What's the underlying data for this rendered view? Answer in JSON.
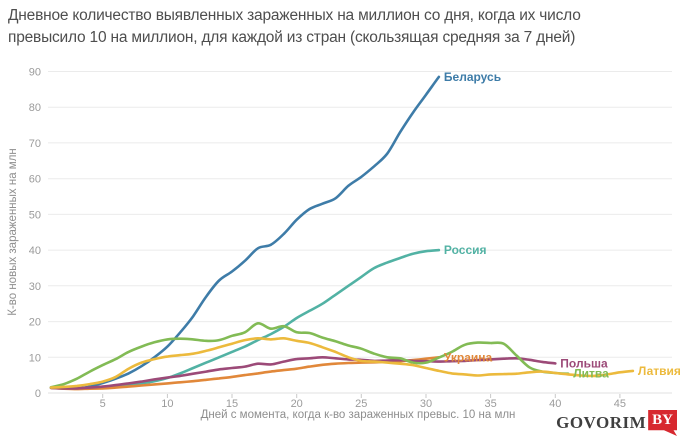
{
  "title": {
    "line1": "Дневное количество выявленных зараженных на миллион со дня, когда их число",
    "line2": "превысило 10 на миллион, для каждой из стран (скользящая средняя за 7 дней)"
  },
  "logo": {
    "text": "GOVORIM",
    "badge": "BY",
    "badge_color": "#d7282f"
  },
  "chart_data": {
    "type": "line",
    "title": "Дневное количество выявленных зараженных на миллион со дня, когда их число превысило 10 на миллион, для каждой из стран (скользящая средняя за 7 дней)",
    "xlabel": "Дней с момента, когда к-во зараженных превыс. 10 на млн",
    "ylabel": "К-во новых зараженных на млн",
    "x_ticks": [
      5,
      10,
      15,
      20,
      25,
      30,
      35,
      40,
      45
    ],
    "y_ticks": [
      0,
      10,
      20,
      30,
      40,
      50,
      60,
      70,
      80,
      90
    ],
    "x_range": [
      1,
      49
    ],
    "ylim": [
      0,
      90
    ],
    "grid": "horizontal",
    "legend_position": "line-end-labels",
    "colors": {
      "grid": "#ebebeb",
      "axis_line": "#e2e2e2",
      "tick": "#c9c9c9",
      "tick_label": "#9b9b9b",
      "axis_title": "#8e8e8e"
    },
    "x_start_day": 1,
    "series": [
      {
        "id": "belarus",
        "name": "Беларусь",
        "color": "#3e7ca8",
        "values": [
          1.5,
          1.4,
          1.3,
          1.8,
          2.8,
          4.0,
          5.5,
          7.5,
          10.0,
          13.0,
          17.0,
          21.5,
          27.0,
          31.5,
          34.0,
          37.0,
          40.5,
          41.5,
          44.5,
          48.5,
          51.5,
          53.0,
          54.5,
          58.0,
          60.5,
          63.5,
          67.0,
          73.0,
          78.5,
          83.5,
          88.5
        ]
      },
      {
        "id": "russia",
        "name": "Россия",
        "color": "#52b2a4",
        "values": [
          1.5,
          1.3,
          1.2,
          1.3,
          1.5,
          1.8,
          2.2,
          2.7,
          3.3,
          4.2,
          5.5,
          7.0,
          8.5,
          10.0,
          11.5,
          13.0,
          14.8,
          16.5,
          18.5,
          21.0,
          23.0,
          25.0,
          27.5,
          30.0,
          32.5,
          35.0,
          36.5,
          37.8,
          39.0,
          39.7,
          40.0
        ]
      },
      {
        "id": "ukraine",
        "name": "Украина",
        "color": "#e1883a",
        "values": [
          1.4,
          1.2,
          1.1,
          1.2,
          1.3,
          1.5,
          1.8,
          2.1,
          2.4,
          2.7,
          3.0,
          3.3,
          3.7,
          4.1,
          4.5,
          5.0,
          5.5,
          6.0,
          6.4,
          6.8,
          7.4,
          7.9,
          8.2,
          8.4,
          8.5,
          8.6,
          8.7,
          8.9,
          9.2,
          9.6,
          10.0
        ]
      },
      {
        "id": "poland",
        "name": "Польша",
        "color": "#9c4a78",
        "values": [
          1.4,
          1.3,
          1.3,
          1.5,
          1.8,
          2.2,
          2.7,
          3.2,
          3.8,
          4.3,
          4.8,
          5.4,
          6.0,
          6.6,
          7.0,
          7.4,
          8.2,
          8.0,
          8.8,
          9.5,
          9.7,
          10.0,
          9.7,
          9.4,
          9.3,
          9.0,
          9.1,
          9.2,
          9.0,
          8.9,
          8.8,
          8.9,
          9.0,
          9.2,
          9.4,
          9.6,
          9.7,
          9.3,
          8.7,
          8.3
        ]
      },
      {
        "id": "lithuania",
        "name": "Литва",
        "color": "#82bb55",
        "values": [
          1.6,
          2.5,
          4.0,
          6.0,
          7.8,
          9.5,
          11.5,
          13.0,
          14.2,
          15.0,
          15.2,
          15.0,
          14.6,
          14.8,
          16.0,
          17.0,
          19.5,
          18.0,
          18.7,
          17.0,
          16.8,
          15.5,
          14.5,
          13.3,
          12.4,
          11.0,
          10.0,
          9.7,
          8.5,
          8.5,
          9.9,
          11.5,
          13.5,
          14.1,
          14.0,
          13.8,
          10.5,
          7.2,
          6.0,
          5.6,
          5.4
        ]
      },
      {
        "id": "latvia",
        "name": "Латвия",
        "color": "#ecba3d",
        "values": [
          1.5,
          1.7,
          2.0,
          2.5,
          3.2,
          4.5,
          6.8,
          8.5,
          9.5,
          10.2,
          10.6,
          11.0,
          11.8,
          12.8,
          13.8,
          14.8,
          15.3,
          15.0,
          15.3,
          14.6,
          14.0,
          12.8,
          11.5,
          10.0,
          9.0,
          8.8,
          8.5,
          8.2,
          7.8,
          7.0,
          6.2,
          5.5,
          5.2,
          4.9,
          5.2,
          5.3,
          5.4,
          5.8,
          6.0,
          5.6,
          5.2,
          4.9,
          4.8,
          5.2,
          5.8,
          6.2
        ]
      }
    ]
  }
}
